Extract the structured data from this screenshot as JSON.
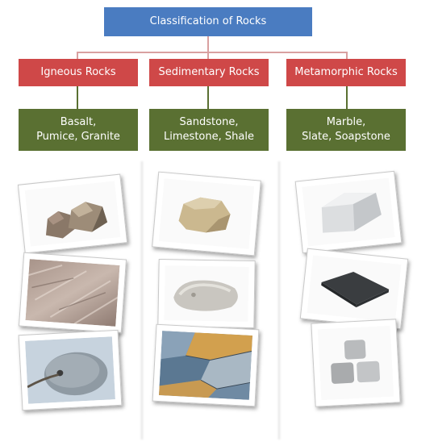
{
  "root": {
    "label": "Classification of Rocks"
  },
  "categories": [
    {
      "label": "Igneous Rocks",
      "examples": [
        "Basalt,",
        "Pumice, Granite"
      ]
    },
    {
      "label": "Sedimentary Rocks",
      "examples": [
        "Sandstone,",
        "Limestone, Shale"
      ]
    },
    {
      "label": "Metamorphic Rocks",
      "examples": [
        "Marble,",
        "Slate, Soapstone"
      ]
    }
  ],
  "colors": {
    "root": "#4a7cc1",
    "category": "#cf4848",
    "examples": "#5a7032",
    "connector": "#d9a0a0"
  },
  "images": [
    {
      "name": "basalt-photo"
    },
    {
      "name": "granite-photo"
    },
    {
      "name": "pumice-photo"
    },
    {
      "name": "sandstone-photo"
    },
    {
      "name": "limestone-photo"
    },
    {
      "name": "shale-photo"
    },
    {
      "name": "marble-photo"
    },
    {
      "name": "slate-photo"
    },
    {
      "name": "soapstone-photo"
    }
  ]
}
